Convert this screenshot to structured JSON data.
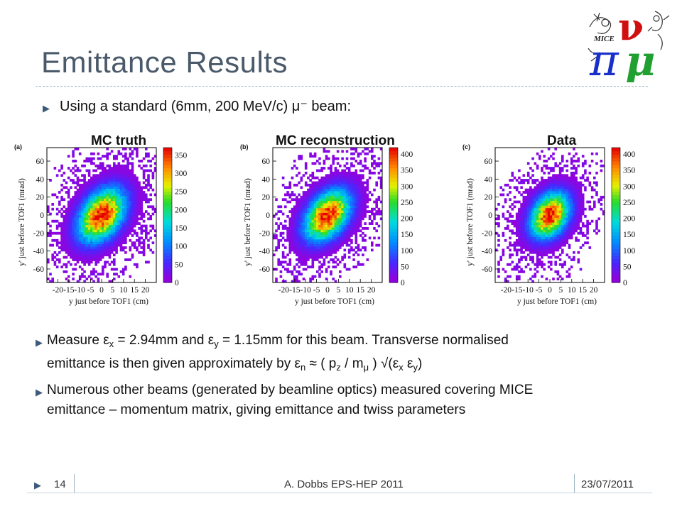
{
  "slide": {
    "title": "Emittance Results",
    "bullet1": "Using a standard (6mm, 200 MeV/c) μ⁻ beam:",
    "bullet2_a": "Measure ε",
    "bullet2_sub_x": "x",
    "bullet2_b": " = 2.94mm and ε",
    "bullet2_sub_y": "y",
    "bullet2_c": " = 1.15mm for this beam. Transverse normalised",
    "bullet2_line2_a": "emittance is then given approximately by  ε",
    "bullet2_sub_n": "n",
    "bullet2_line2_b": " ≈ ( p",
    "bullet2_sub_z": "z",
    "bullet2_line2_c": " / m",
    "bullet2_sub_mu": "μ",
    "bullet2_line2_d": " ) √(ε",
    "bullet2_sub_x2": "x",
    "bullet2_line2_e": " ε",
    "bullet2_sub_y2": "y",
    "bullet2_line2_f": ")",
    "bullet3_line1": "Numerous other beams (generated by beamline optics) measured covering MICE",
    "bullet3_line2": "emittance – momentum matrix, giving emittance and twiss parameters",
    "bullet_glyph": "▶"
  },
  "logo": {
    "text": "MICE",
    "pi": "π",
    "nu": "ν",
    "mu": "μ",
    "colors": {
      "pi": "#1a2fc8",
      "nu": "#d01010",
      "mu": "#20a030",
      "sketch": "#333333"
    }
  },
  "footer": {
    "page": "14",
    "author": "A. Dobbs EPS-HEP 2011",
    "date": "23/07/2011"
  },
  "chart_data": [
    {
      "type": "heatmap",
      "tag": "(a)",
      "title": "MC truth",
      "xlabel": "y just before TOF1 (cm)",
      "ylabel": "y' just before TOF1 (mrad)",
      "xlim": [
        -25,
        25
      ],
      "ylim": [
        -75,
        75
      ],
      "xticks": [
        -20,
        -15,
        -10,
        -5,
        0,
        5,
        10,
        15,
        20
      ],
      "xtick_labels": [
        "-20",
        "-15",
        "-10",
        "-5",
        "0",
        "5",
        "10",
        "15",
        "20"
      ],
      "yticks": [
        -60,
        -40,
        -20,
        0,
        20,
        40,
        60
      ],
      "ytick_labels": [
        "-60",
        "-40",
        "-20",
        "0",
        "20",
        "40",
        "60"
      ],
      "zlim": [
        0,
        370
      ],
      "zticks": [
        0,
        50,
        100,
        150,
        200,
        250,
        300,
        350
      ],
      "ztick_labels": [
        "0",
        "50",
        "100",
        "150",
        "200",
        "250",
        "300",
        "350"
      ],
      "peak": 350,
      "sigma_x": 7.2,
      "sigma_y": 20,
      "correlation": 0.38
    },
    {
      "type": "heatmap",
      "tag": "(b)",
      "title": "MC reconstruction",
      "xlabel": "y just before TOF1 (cm)",
      "ylabel": "y' just before TOF1 (mrad)",
      "xlim": [
        -25,
        25
      ],
      "ylim": [
        -75,
        75
      ],
      "xticks": [
        -20,
        -15,
        -10,
        -5,
        0,
        5,
        10,
        15,
        20
      ],
      "xtick_labels": [
        "-20",
        "-15",
        "-10",
        "-5",
        "0",
        "5",
        "10",
        "15",
        "20"
      ],
      "yticks": [
        -60,
        -40,
        -20,
        0,
        20,
        40,
        60
      ],
      "ytick_labels": [
        "-60",
        "-40",
        "-20",
        "0",
        "20",
        "40",
        "60"
      ],
      "zlim": [
        0,
        420
      ],
      "zticks": [
        0,
        50,
        100,
        150,
        200,
        250,
        300,
        350,
        400
      ],
      "ztick_labels": [
        "0",
        "50",
        "100",
        "150",
        "200",
        "250",
        "300",
        "350",
        "400"
      ],
      "peak": 400,
      "sigma_x": 7.0,
      "sigma_y": 19,
      "correlation": 0.4
    },
    {
      "type": "heatmap",
      "tag": "(c)",
      "title": "Data",
      "xlabel": "y just before TOF1 (cm)",
      "ylabel": "y' just before TOF1 (mrad)",
      "xlim": [
        -25,
        25
      ],
      "ylim": [
        -75,
        75
      ],
      "xticks": [
        -20,
        -15,
        -10,
        -5,
        0,
        5,
        10,
        15,
        20
      ],
      "xtick_labels": [
        "-20",
        "-15",
        "-10",
        "-5",
        "0",
        "5",
        "10",
        "15",
        "20"
      ],
      "yticks": [
        -60,
        -40,
        -20,
        0,
        20,
        40,
        60
      ],
      "ytick_labels": [
        "-60",
        "-40",
        "-20",
        "0",
        "20",
        "40",
        "60"
      ],
      "zlim": [
        0,
        420
      ],
      "zticks": [
        0,
        50,
        100,
        150,
        200,
        250,
        300,
        350,
        400
      ],
      "ztick_labels": [
        "0",
        "50",
        "100",
        "150",
        "200",
        "250",
        "300",
        "350",
        "400"
      ],
      "peak": 400,
      "sigma_x": 6.0,
      "sigma_y": 17,
      "correlation": 0.3
    }
  ]
}
